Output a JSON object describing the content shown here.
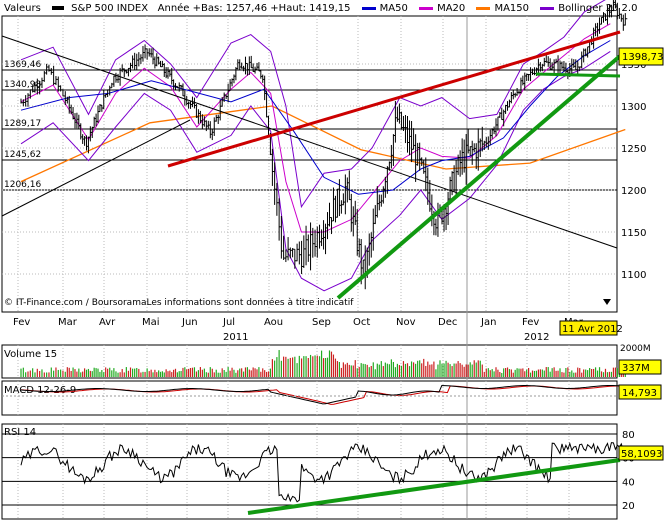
{
  "header": {
    "label": "Valeurs",
    "index_name": "S&P 500 INDEX",
    "stats": "Année +Bas: 1257,46 +Haut: 1419,15",
    "legend": [
      {
        "label": "MA50",
        "color": "#0000cc"
      },
      {
        "label": "MA20",
        "color": "#cc00cc"
      },
      {
        "label": "MA150",
        "color": "#ff7700"
      },
      {
        "label": "Bollinger 20 2.0",
        "color": "#7a00cc"
      }
    ]
  },
  "main_panel": {
    "left_levels": [
      "1369,46",
      "1340,98",
      "1289,17",
      "1245,62",
      "1206,16"
    ],
    "right_ticks": [
      "1350",
      "1300",
      "1250",
      "1200",
      "1150",
      "1100"
    ],
    "price_badge": "1398,73",
    "footer": "© IT-Finance.com / BoursoramaLes informations sont données à titre indicatif"
  },
  "time_axis": {
    "months": [
      "Fev",
      "Mar",
      "Avr",
      "Mai",
      "Jun",
      "Jul",
      "Aou",
      "Sep",
      "Oct",
      "Nov",
      "Dec",
      "Jan",
      "Fev",
      "Mar"
    ],
    "year_labels": [
      "2011",
      "2012"
    ],
    "date_badge": "11 Avr 2012"
  },
  "volume_panel": {
    "label": "Volume 15",
    "top_tick": "2000M",
    "badge": "337M"
  },
  "macd_panel": {
    "label": "MACD 12-26-9",
    "badge": "14,793"
  },
  "rsi_panel": {
    "label": "RSI 14",
    "badge": "58,1093",
    "ticks": [
      "80",
      "60",
      "40",
      "20"
    ]
  },
  "colors": {
    "price_bar": "#000000",
    "resistance_line": "#cc0000",
    "support_line": "#119911",
    "volume_up": "#22aa22",
    "volume_down": "#cc2222",
    "badge_bg": "#ffff00",
    "date_badge_bg": "#ffee00",
    "grid": "#000000",
    "dotted_grid": "#bbbbbb"
  },
  "chart_data": {
    "type": "line",
    "title": "S&P 500 INDEX",
    "y_range": [
      1070,
      1430
    ],
    "x_range": [
      "2011-02-01",
      "2012-04-11"
    ],
    "series": [
      {
        "name": "S&P 500 INDEX",
        "x": [
          "2011-02-01",
          "2011-02-18",
          "2011-03-16",
          "2011-04-05",
          "2011-04-29",
          "2011-05-25",
          "2011-06-16",
          "2011-07-07",
          "2011-07-25",
          "2011-08-08",
          "2011-08-22",
          "2011-09-06",
          "2011-09-20",
          "2011-10-03",
          "2011-10-27",
          "2011-11-10",
          "2011-11-25",
          "2011-12-12",
          "2011-12-30",
          "2012-01-20",
          "2012-02-09",
          "2012-03-06",
          "2012-03-23",
          "2012-04-02",
          "2012-04-11"
        ],
        "values": [
          1304,
          1343,
          1256,
          1333,
          1364,
          1319,
          1268,
          1353,
          1337,
          1120,
          1124,
          1165,
          1203,
          1100,
          1285,
          1240,
          1160,
          1236,
          1258,
          1315,
          1352,
          1343,
          1398,
          1419,
          1399
        ]
      },
      {
        "name": "MA150",
        "x": [
          "2011-02-01",
          "2011-05-01",
          "2011-08-01",
          "2011-10-01",
          "2011-12-01",
          "2012-02-01",
          "2012-04-11"
        ],
        "values": [
          1210,
          1280,
          1300,
          1248,
          1225,
          1232,
          1272
        ]
      }
    ],
    "volume": {
      "label": "Volume 15",
      "unit": "M",
      "last": 337,
      "ymax": 2000
    },
    "macd": {
      "label": "MACD 12-26-9",
      "last": 14.793
    },
    "rsi": {
      "label": "RSI 14",
      "last": 58.1093,
      "ymin": 20,
      "ymax": 80
    }
  }
}
